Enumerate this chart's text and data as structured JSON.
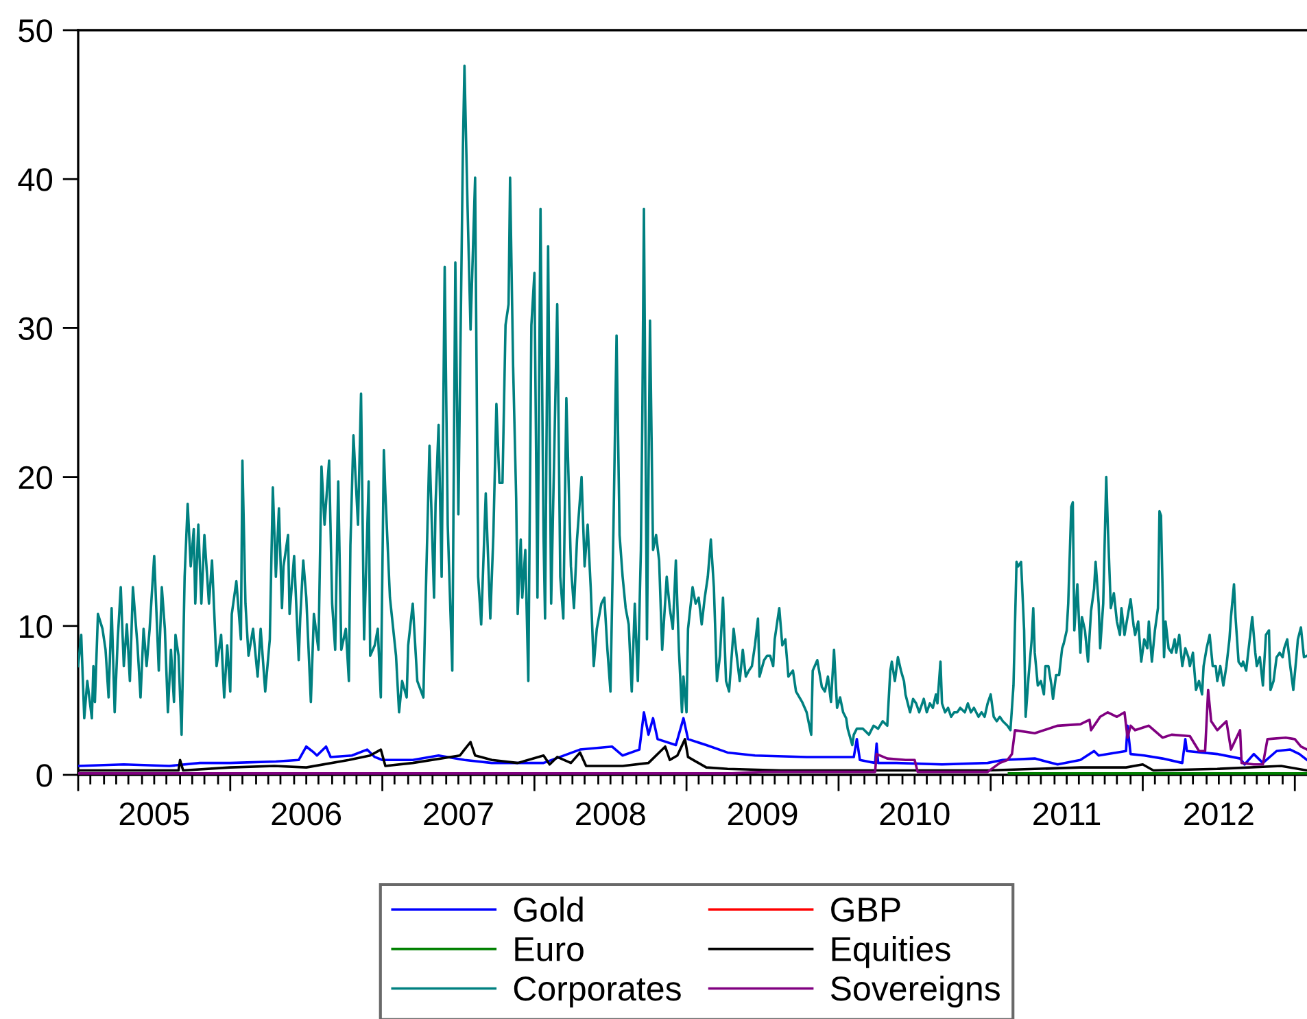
{
  "chart_data": {
    "type": "line",
    "xlim": [
      2005,
      2013.08
    ],
    "ylim": [
      0,
      50
    ],
    "yticks": [
      0,
      10,
      20,
      30,
      40,
      50
    ],
    "xticks": [
      {
        "value": 2005,
        "label": null
      },
      {
        "value": 2005.08,
        "label": null
      },
      {
        "value": 2005.17,
        "label": null
      },
      {
        "value": 2005.25,
        "label": null
      },
      {
        "value": 2005.33,
        "label": null
      },
      {
        "value": 2005.42,
        "label": null
      },
      {
        "value": 2005.5,
        "label": "2005"
      },
      {
        "value": 2005.58,
        "label": null
      },
      {
        "value": 2005.67,
        "label": null
      },
      {
        "value": 2005.75,
        "label": null
      },
      {
        "value": 2005.83,
        "label": null
      },
      {
        "value": 2005.92,
        "label": null
      },
      {
        "value": 2006,
        "label": null
      },
      {
        "value": 2006.08,
        "label": null
      },
      {
        "value": 2006.17,
        "label": null
      },
      {
        "value": 2006.25,
        "label": null
      },
      {
        "value": 2006.33,
        "label": null
      },
      {
        "value": 2006.42,
        "label": null
      },
      {
        "value": 2006.5,
        "label": "2006"
      },
      {
        "value": 2006.58,
        "label": null
      },
      {
        "value": 2006.67,
        "label": null
      },
      {
        "value": 2006.75,
        "label": null
      },
      {
        "value": 2006.83,
        "label": null
      },
      {
        "value": 2006.92,
        "label": null
      },
      {
        "value": 2007,
        "label": null
      },
      {
        "value": 2007.08,
        "label": null
      },
      {
        "value": 2007.17,
        "label": null
      },
      {
        "value": 2007.25,
        "label": null
      },
      {
        "value": 2007.33,
        "label": null
      },
      {
        "value": 2007.42,
        "label": null
      },
      {
        "value": 2007.5,
        "label": "2007"
      },
      {
        "value": 2007.58,
        "label": null
      },
      {
        "value": 2007.67,
        "label": null
      },
      {
        "value": 2007.75,
        "label": null
      },
      {
        "value": 2007.83,
        "label": null
      },
      {
        "value": 2007.92,
        "label": null
      },
      {
        "value": 2008,
        "label": null
      },
      {
        "value": 2008.08,
        "label": null
      },
      {
        "value": 2008.17,
        "label": null
      },
      {
        "value": 2008.25,
        "label": null
      },
      {
        "value": 2008.33,
        "label": null
      },
      {
        "value": 2008.42,
        "label": null
      },
      {
        "value": 2008.5,
        "label": "2008"
      },
      {
        "value": 2008.58,
        "label": null
      },
      {
        "value": 2008.67,
        "label": null
      },
      {
        "value": 2008.75,
        "label": null
      },
      {
        "value": 2008.83,
        "label": null
      },
      {
        "value": 2008.92,
        "label": null
      },
      {
        "value": 2009,
        "label": null
      },
      {
        "value": 2009.08,
        "label": null
      },
      {
        "value": 2009.17,
        "label": null
      },
      {
        "value": 2009.25,
        "label": null
      },
      {
        "value": 2009.33,
        "label": null
      },
      {
        "value": 2009.42,
        "label": null
      },
      {
        "value": 2009.5,
        "label": "2009"
      },
      {
        "value": 2009.58,
        "label": null
      },
      {
        "value": 2009.67,
        "label": null
      },
      {
        "value": 2009.75,
        "label": null
      },
      {
        "value": 2009.83,
        "label": null
      },
      {
        "value": 2009.92,
        "label": null
      },
      {
        "value": 2010,
        "label": null
      },
      {
        "value": 2010.08,
        "label": null
      },
      {
        "value": 2010.17,
        "label": null
      },
      {
        "value": 2010.25,
        "label": null
      },
      {
        "value": 2010.33,
        "label": null
      },
      {
        "value": 2010.42,
        "label": null
      },
      {
        "value": 2010.5,
        "label": "2010"
      },
      {
        "value": 2010.58,
        "label": null
      },
      {
        "value": 2010.67,
        "label": null
      },
      {
        "value": 2010.75,
        "label": null
      },
      {
        "value": 2010.83,
        "label": null
      },
      {
        "value": 2010.92,
        "label": null
      },
      {
        "value": 2011,
        "label": null
      },
      {
        "value": 2011.08,
        "label": null
      },
      {
        "value": 2011.17,
        "label": null
      },
      {
        "value": 2011.25,
        "label": null
      },
      {
        "value": 2011.33,
        "label": null
      },
      {
        "value": 2011.42,
        "label": null
      },
      {
        "value": 2011.5,
        "label": "2011"
      },
      {
        "value": 2011.58,
        "label": null
      },
      {
        "value": 2011.67,
        "label": null
      },
      {
        "value": 2011.75,
        "label": null
      },
      {
        "value": 2011.83,
        "label": null
      },
      {
        "value": 2011.92,
        "label": null
      },
      {
        "value": 2012,
        "label": null
      },
      {
        "value": 2012.08,
        "label": null
      },
      {
        "value": 2012.17,
        "label": null
      },
      {
        "value": 2012.25,
        "label": null
      },
      {
        "value": 2012.33,
        "label": null
      },
      {
        "value": 2012.42,
        "label": null
      },
      {
        "value": 2012.5,
        "label": "2012"
      },
      {
        "value": 2012.58,
        "label": null
      },
      {
        "value": 2012.67,
        "label": null
      },
      {
        "value": 2012.75,
        "label": null
      },
      {
        "value": 2012.83,
        "label": null
      },
      {
        "value": 2012.92,
        "label": null
      },
      {
        "value": 2013,
        "label": null
      }
    ],
    "legend": "bottom",
    "series": [
      {
        "name": "Gold",
        "color": "#0000ff",
        "x": [
          2005.0,
          2005.3,
          2005.6,
          2005.8,
          2006.0,
          2006.3,
          2006.45,
          2006.5,
          2006.55,
          2006.57,
          2006.63,
          2006.66,
          2006.8,
          2006.9,
          2006.95,
          2007.0,
          2007.2,
          2007.37,
          2007.54,
          2007.72,
          2008.06,
          2008.3,
          2008.51,
          2008.58,
          2008.69,
          2008.72,
          2008.75,
          2008.78,
          2008.81,
          2008.93,
          2008.98,
          2009.01,
          2009.13,
          2009.27,
          2009.45,
          2009.79,
          2009.97,
          2010.1,
          2010.12,
          2010.14,
          2010.24,
          2010.25,
          2010.26,
          2010.38,
          2010.68,
          2010.98,
          2011.08,
          2011.29,
          2011.44,
          2011.59,
          2011.68,
          2011.71,
          2011.89,
          2011.9,
          2011.92,
          2012.01,
          2012.13,
          2012.26,
          2012.28,
          2012.29,
          2012.49,
          2012.64,
          2012.67,
          2012.73,
          2012.79,
          2012.88,
          2012.97,
          2013.03,
          2013.08
        ],
        "values": [
          0.6,
          0.7,
          0.6,
          0.8,
          0.8,
          0.9,
          1.0,
          1.9,
          1.5,
          1.3,
          1.9,
          1.2,
          1.3,
          1.7,
          1.2,
          1.0,
          1.0,
          1.3,
          1.0,
          0.8,
          0.8,
          1.7,
          1.9,
          1.3,
          1.7,
          4.2,
          2.7,
          3.8,
          2.4,
          2.0,
          3.8,
          2.4,
          2.0,
          1.5,
          1.3,
          1.2,
          1.2,
          1.2,
          2.4,
          1.0,
          0.8,
          2.1,
          0.8,
          0.8,
          0.7,
          0.8,
          1.0,
          1.1,
          0.7,
          1.0,
          1.6,
          1.3,
          1.6,
          3.3,
          1.4,
          1.3,
          1.1,
          0.8,
          2.4,
          1.6,
          1.4,
          1.1,
          0.7,
          1.4,
          0.8,
          1.6,
          1.7,
          1.4,
          1.0
        ]
      },
      {
        "name": "GBP",
        "color": "#ff0000"
      },
      {
        "name": "Euro",
        "color": "#008000",
        "x": [
          2011.12,
          2012.0,
          2013.08
        ],
        "values": [
          0.1,
          0.1,
          0.1
        ]
      },
      {
        "name": "Equities",
        "color": "#000000",
        "x": [
          2005.0,
          2005.66,
          2005.67,
          2005.69,
          2006.0,
          2006.29,
          2006.5,
          2006.78,
          2006.92,
          2006.99,
          2007.02,
          2007.2,
          2007.51,
          2007.54,
          2007.58,
          2007.61,
          2007.65,
          2007.72,
          2007.89,
          2008.06,
          2008.1,
          2008.15,
          2008.24,
          2008.3,
          2008.34,
          2008.58,
          2008.75,
          2008.86,
          2008.89,
          2008.94,
          2008.99,
          2009.01,
          2009.13,
          2009.27,
          2009.62,
          2010.17,
          2010.38,
          2010.98,
          2011.29,
          2011.59,
          2011.89,
          2012.0,
          2012.07,
          2012.49,
          2012.91,
          2013.08
        ],
        "values": [
          0.3,
          0.3,
          1.0,
          0.3,
          0.5,
          0.6,
          0.5,
          1.0,
          1.3,
          1.7,
          0.6,
          0.8,
          1.3,
          1.7,
          2.2,
          1.3,
          1.2,
          1.0,
          0.8,
          1.3,
          0.7,
          1.2,
          0.8,
          1.5,
          0.6,
          0.6,
          0.8,
          1.9,
          1.0,
          1.3,
          2.4,
          1.2,
          0.5,
          0.4,
          0.3,
          0.3,
          0.3,
          0.3,
          0.4,
          0.5,
          0.5,
          0.7,
          0.3,
          0.4,
          0.6,
          0.3
        ]
      },
      {
        "name": "Corporates",
        "color": "#008080",
        "x": [
          2005.0,
          2005.02,
          2005.04,
          2005.06,
          2005.09,
          2005.1,
          2005.11,
          2005.13,
          2005.16,
          2005.18,
          2005.2,
          2005.22,
          2005.24,
          2005.26,
          2005.28,
          2005.3,
          2005.32,
          2005.34,
          2005.36,
          2005.39,
          2005.41,
          2005.43,
          2005.45,
          2005.47,
          2005.5,
          2005.53,
          2005.55,
          2005.57,
          2005.59,
          2005.61,
          2005.63,
          2005.64,
          2005.66,
          2005.68,
          2005.7,
          2005.72,
          2005.74,
          2005.76,
          2005.77,
          2005.79,
          2005.81,
          2005.83,
          2005.86,
          2005.88,
          2005.91,
          2005.94,
          2005.96,
          2005.98,
          2006.0,
          2006.01,
          2006.04,
          2006.07,
          2006.08,
          2006.1,
          2006.12,
          2006.15,
          2006.18,
          2006.2,
          2006.23,
          2006.26,
          2006.28,
          2006.3,
          2006.32,
          2006.34,
          2006.35,
          2006.38,
          2006.39,
          2006.42,
          2006.45,
          2006.46,
          2006.48,
          2006.5,
          2006.53,
          2006.55,
          2006.58,
          2006.6,
          2006.62,
          2006.64,
          2006.65,
          2006.67,
          2006.69,
          2006.71,
          2006.73,
          2006.76,
          2006.78,
          2006.79,
          2006.81,
          2006.84,
          2006.86,
          2006.88,
          2006.91,
          2006.92,
          2006.95,
          2006.97,
          2006.99,
          2007.01,
          2007.02,
          2007.05,
          2007.09,
          2007.11,
          2007.13,
          2007.16,
          2007.17,
          2007.2,
          2007.23,
          2007.27,
          2007.28,
          2007.31,
          2007.34,
          2007.35,
          2007.37,
          2007.39,
          2007.41,
          2007.43,
          2007.46,
          2007.48,
          2007.5,
          2007.53,
          2007.54,
          2007.56,
          2007.58,
          2007.61,
          2007.63,
          2007.65,
          2007.68,
          2007.71,
          2007.73,
          2007.75,
          2007.77,
          2007.79,
          2007.81,
          2007.83,
          2007.84,
          2007.86,
          2007.88,
          2007.89,
          2007.91,
          2007.92,
          2007.94,
          2007.96,
          2007.98,
          2008.0,
          2008.02,
          2008.04,
          2008.06,
          2008.07,
          2008.09,
          2008.11,
          2008.13,
          2008.15,
          2008.17,
          2008.19,
          2008.21,
          2008.24,
          2008.26,
          2008.28,
          2008.31,
          2008.33,
          2008.35,
          2008.37,
          2008.39,
          2008.41,
          2008.44,
          2008.46,
          2008.48,
          2008.5,
          2008.52,
          2008.54,
          2008.56,
          2008.58,
          2008.6,
          2008.62,
          2008.64,
          2008.66,
          2008.68,
          2008.7,
          2008.71,
          2008.72,
          2008.74,
          2008.76,
          2008.78,
          2008.8,
          2008.82,
          2008.84,
          2008.87,
          2008.89,
          2008.91,
          2008.93,
          2008.95,
          2008.97,
          2008.98,
          2009.0,
          2009.01,
          2009.04,
          2009.06,
          2009.08,
          2009.1,
          2009.12,
          2009.14,
          2009.16,
          2009.18,
          2009.2,
          2009.22,
          2009.24,
          2009.26,
          2009.28,
          2009.31,
          2009.33,
          2009.35,
          2009.37,
          2009.39,
          2009.41,
          2009.43,
          2009.45,
          2009.47,
          2009.48,
          2009.51,
          2009.53,
          2009.55,
          2009.57,
          2009.58,
          2009.61,
          2009.63,
          2009.65,
          2009.67,
          2009.7,
          2009.72,
          2009.76,
          2009.79,
          2009.82,
          2009.83,
          2009.86,
          2009.89,
          2009.91,
          2009.93,
          2009.95,
          2009.97,
          2009.99,
          2010.01,
          2010.03,
          2010.05,
          2010.06,
          2010.09,
          2010.1,
          2010.12,
          2010.16,
          2010.2,
          2010.23,
          2010.26,
          2010.29,
          2010.32,
          2010.34,
          2010.35,
          2010.37,
          2010.39,
          2010.41,
          2010.43,
          2010.44,
          2010.47,
          2010.49,
          2010.51,
          2010.53,
          2010.56,
          2010.58,
          2010.6,
          2010.62,
          2010.64,
          2010.65,
          2010.67,
          2010.68,
          2010.7,
          2010.72,
          2010.74,
          2010.76,
          2010.78,
          2010.8,
          2010.83,
          2010.85,
          2010.87,
          2010.89,
          2010.92,
          2010.94,
          2010.96,
          2010.98,
          2011.0,
          2011.02,
          2011.04,
          2011.06,
          2011.08,
          2011.11,
          2011.13,
          2011.15,
          2011.17,
          2011.18,
          2011.2,
          2011.22,
          2011.23,
          2011.25,
          2011.27,
          2011.28,
          2011.29,
          2011.31,
          2011.33,
          2011.35,
          2011.36,
          2011.38,
          2011.4,
          2011.41,
          2011.43,
          2011.45,
          2011.47,
          2011.48,
          2011.5,
          2011.51,
          2011.53,
          2011.54,
          2011.55,
          2011.57,
          2011.59,
          2011.6,
          2011.62,
          2011.64,
          2011.66,
          2011.68,
          2011.69,
          2011.71,
          2011.72,
          2011.74,
          2011.76,
          2011.77,
          2011.79,
          2011.81,
          2011.83,
          2011.85,
          2011.86,
          2011.88,
          2011.9,
          2011.92,
          2011.94,
          2011.95,
          2011.97,
          2011.99,
          2012.01,
          2012.03,
          2012.04,
          2012.06,
          2012.08,
          2012.1,
          2012.11,
          2012.12,
          2012.14,
          2012.15,
          2012.17,
          2012.19,
          2012.21,
          2012.22,
          2012.24,
          2012.26,
          2012.28,
          2012.3,
          2012.31,
          2012.33,
          2012.35,
          2012.37,
          2012.39,
          2012.4,
          2012.42,
          2012.44,
          2012.46,
          2012.48,
          2012.49,
          2012.51,
          2012.53,
          2012.55,
          2012.57,
          2012.58,
          2012.6,
          2012.61,
          2012.63,
          2012.65,
          2012.66,
          2012.68,
          2012.7,
          2012.72,
          2012.74,
          2012.75,
          2012.77,
          2012.79,
          2012.81,
          2012.83,
          2012.84,
          2012.86,
          2012.88,
          2012.9,
          2012.92,
          2012.93,
          2012.95,
          2012.97,
          2012.99,
          2013.01,
          2013.02,
          2013.04,
          2013.06,
          2013.08
        ],
        "values": [
          7.3,
          9.4,
          3.8,
          6.3,
          3.8,
          7.3,
          4.9,
          10.8,
          9.8,
          8.4,
          5.2,
          11.2,
          4.2,
          9.1,
          12.6,
          7.3,
          10.1,
          6.3,
          12.6,
          8.7,
          5.2,
          9.8,
          7.3,
          9.8,
          14.7,
          7.0,
          12.6,
          9.8,
          4.2,
          8.4,
          4.9,
          9.4,
          8.0,
          2.7,
          13.3,
          18.2,
          14.0,
          16.5,
          11.5,
          16.8,
          11.5,
          16.1,
          11.5,
          14.4,
          7.3,
          9.4,
          5.2,
          8.7,
          5.6,
          10.8,
          13.0,
          9.1,
          21.1,
          11.5,
          8.0,
          9.8,
          6.6,
          9.8,
          5.6,
          9.1,
          19.3,
          13.3,
          17.9,
          11.2,
          14.0,
          16.1,
          10.8,
          14.7,
          7.7,
          10.5,
          14.4,
          11.9,
          4.9,
          10.8,
          8.4,
          20.7,
          16.8,
          19.7,
          21.1,
          11.5,
          8.4,
          19.7,
          8.4,
          9.8,
          6.3,
          15.4,
          22.8,
          16.8,
          25.6,
          9.1,
          19.7,
          8.0,
          8.7,
          9.8,
          5.2,
          21.8,
          18.9,
          11.9,
          8.0,
          4.2,
          6.3,
          5.2,
          8.7,
          11.5,
          6.3,
          5.2,
          9.8,
          22.1,
          11.9,
          18.2,
          23.5,
          13.3,
          34.1,
          16.8,
          7.0,
          34.4,
          17.5,
          42.2,
          47.6,
          38.3,
          29.9,
          40.1,
          13.3,
          10.1,
          18.9,
          10.5,
          16.1,
          24.9,
          19.6,
          19.6,
          30.2,
          31.6,
          40.1,
          27.4,
          18.6,
          10.8,
          15.8,
          11.9,
          15.1,
          6.3,
          30.2,
          33.7,
          11.9,
          38.0,
          16.1,
          10.5,
          35.5,
          11.5,
          21.4,
          31.6,
          13.3,
          10.5,
          25.3,
          14.0,
          11.2,
          15.8,
          20.0,
          14.0,
          16.8,
          12.6,
          7.3,
          9.8,
          11.5,
          11.9,
          8.4,
          5.6,
          16.8,
          29.5,
          16.1,
          13.3,
          11.2,
          10.1,
          5.6,
          11.5,
          6.3,
          15.1,
          24.6,
          38.0,
          9.1,
          30.5,
          15.1,
          16.1,
          14.4,
          8.4,
          13.3,
          11.2,
          9.8,
          14.4,
          8.4,
          4.2,
          6.6,
          4.2,
          9.8,
          12.6,
          11.5,
          11.9,
          10.1,
          11.9,
          13.3,
          15.8,
          12.6,
          6.3,
          8.0,
          11.9,
          6.3,
          5.6,
          9.8,
          8.0,
          6.3,
          8.4,
          6.6,
          7.0,
          7.3,
          8.7,
          10.5,
          6.6,
          7.7,
          8.0,
          8.0,
          7.3,
          9.1,
          11.2,
          8.7,
          9.1,
          6.6,
          7.0,
          5.6,
          4.9,
          4.2,
          2.7,
          7.0,
          7.7,
          5.9,
          5.6,
          6.6,
          4.9,
          8.4,
          4.5,
          5.2,
          4.2,
          3.8,
          3.1,
          2.0,
          2.7,
          3.1,
          3.1,
          2.7,
          3.3,
          3.1,
          3.6,
          3.3,
          7.0,
          7.6,
          6.3,
          7.9,
          7.0,
          6.3,
          5.4,
          4.2,
          5.1,
          4.8,
          4.2,
          5.1,
          4.2,
          4.8,
          4.5,
          5.4,
          4.8,
          7.6,
          4.8,
          4.2,
          4.5,
          3.9,
          4.2,
          4.2,
          4.5,
          4.2,
          4.8,
          4.2,
          4.5,
          3.9,
          4.2,
          3.9,
          4.8,
          5.4,
          3.9,
          3.6,
          3.9,
          3.6,
          3.3,
          3.0,
          6.0,
          14.3,
          14.0,
          14.3,
          9.7,
          3.9,
          6.7,
          9.1,
          11.2,
          8.2,
          6.0,
          6.3,
          5.4,
          7.3,
          7.3,
          6.0,
          5.1,
          6.7,
          6.7,
          8.5,
          8.8,
          9.7,
          11.5,
          18.0,
          18.3,
          9.7,
          12.8,
          8.2,
          10.6,
          9.7,
          7.6,
          11.0,
          12.5,
          14.3,
          11.5,
          8.5,
          11.5,
          20.0,
          16.8,
          11.2,
          12.2,
          10.3,
          9.4,
          11.2,
          9.4,
          10.6,
          11.8,
          10.0,
          9.4,
          10.3,
          7.6,
          9.1,
          8.5,
          10.3,
          7.6,
          9.7,
          11.2,
          17.7,
          17.4,
          7.9,
          10.3,
          8.5,
          8.2,
          9.1,
          8.2,
          9.4,
          7.3,
          8.5,
          7.9,
          7.3,
          8.2,
          5.7,
          6.3,
          5.4,
          7.3,
          8.5,
          9.4,
          7.3,
          7.3,
          6.3,
          7.3,
          6.0,
          7.3,
          9.1,
          10.6,
          12.8,
          10.6,
          7.6,
          7.3,
          7.6,
          7.0,
          8.8,
          10.6,
          8.2,
          7.3,
          7.9,
          6.0,
          9.4,
          9.7,
          5.7,
          6.3,
          7.9,
          8.2,
          7.9,
          8.5,
          9.1,
          7.3,
          5.7,
          7.9,
          9.1,
          9.9,
          7.9,
          8.0
        ]
      },
      {
        "name": "Sovereigns",
        "color": "#800080",
        "x": [
          2005.0,
          2009.3,
          2009.5,
          2010.0,
          2010.24,
          2010.25,
          2010.32,
          2010.44,
          2010.5,
          2010.52,
          2010.68,
          2010.98,
          2011.06,
          2011.11,
          2011.14,
          2011.16,
          2011.29,
          2011.44,
          2011.59,
          2011.65,
          2011.66,
          2011.72,
          2011.77,
          2011.83,
          2011.88,
          2011.9,
          2011.92,
          2011.95,
          2012.04,
          2012.13,
          2012.19,
          2012.31,
          2012.37,
          2012.41,
          2012.43,
          2012.45,
          2012.49,
          2012.55,
          2012.58,
          2012.64,
          2012.65,
          2012.73,
          2012.79,
          2012.82,
          2012.94,
          2013.0,
          2013.04,
          2013.08
        ],
        "values": [
          0.1,
          0.1,
          0.2,
          0.2,
          0.2,
          1.4,
          1.1,
          1.0,
          1.0,
          0.2,
          0.2,
          0.2,
          0.8,
          1.0,
          1.4,
          3.0,
          2.8,
          3.3,
          3.4,
          3.7,
          3.0,
          3.9,
          4.2,
          3.9,
          4.2,
          2.5,
          3.3,
          3.0,
          3.3,
          2.5,
          2.7,
          2.6,
          1.6,
          1.6,
          5.7,
          3.6,
          3.0,
          3.6,
          1.7,
          3.0,
          0.8,
          0.7,
          0.7,
          2.4,
          2.5,
          2.4,
          1.9,
          1.7
        ]
      }
    ]
  }
}
